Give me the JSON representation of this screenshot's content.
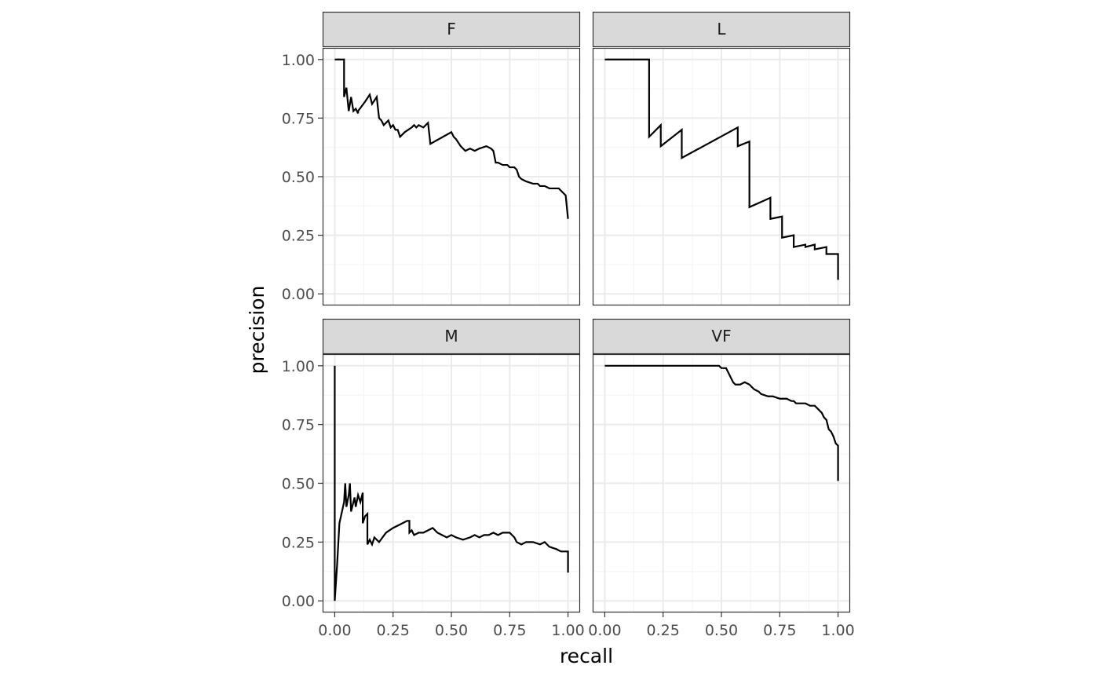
{
  "chart_data": {
    "type": "line",
    "facet_layout": "2x2 grid",
    "xlabel": "recall",
    "ylabel": "precision",
    "xlim": [
      0,
      1
    ],
    "ylim": [
      0,
      1
    ],
    "x_ticks": [
      "0.00",
      "0.25",
      "0.50",
      "0.75",
      "1.00"
    ],
    "y_ticks": [
      "0.00",
      "0.25",
      "0.50",
      "0.75",
      "1.00"
    ],
    "grid": true,
    "colors": {
      "line": "#000000",
      "strip_fill": "#d9d9d9",
      "grid_major": "#ebebeb",
      "grid_minor": "#f4f4f4",
      "border": "#333333"
    },
    "panels": [
      {
        "label": "F",
        "series": [
          {
            "x": [
              0.0,
              0.04,
              0.04,
              0.05,
              0.06,
              0.07,
              0.08,
              0.09,
              0.1,
              0.1,
              0.13,
              0.15,
              0.16,
              0.18,
              0.19,
              0.2,
              0.21,
              0.22,
              0.23,
              0.24,
              0.25,
              0.26,
              0.27,
              0.28,
              0.3,
              0.33,
              0.34,
              0.35,
              0.36,
              0.38,
              0.4,
              0.41,
              0.5,
              0.51,
              0.52,
              0.54,
              0.55,
              0.56,
              0.58,
              0.6,
              0.62,
              0.65,
              0.67,
              0.68,
              0.69,
              0.7,
              0.72,
              0.74,
              0.75,
              0.77,
              0.78,
              0.79,
              0.8,
              0.82,
              0.85,
              0.87,
              0.88,
              0.9,
              0.92,
              0.94,
              0.96,
              0.97,
              0.98,
              0.99,
              1.0
            ],
            "y": [
              1.0,
              1.0,
              0.84,
              0.88,
              0.78,
              0.84,
              0.78,
              0.79,
              0.77,
              0.78,
              0.82,
              0.85,
              0.81,
              0.84,
              0.75,
              0.74,
              0.72,
              0.73,
              0.74,
              0.71,
              0.72,
              0.7,
              0.7,
              0.67,
              0.69,
              0.71,
              0.72,
              0.71,
              0.72,
              0.71,
              0.73,
              0.64,
              0.69,
              0.67,
              0.66,
              0.63,
              0.62,
              0.61,
              0.62,
              0.61,
              0.62,
              0.63,
              0.62,
              0.61,
              0.56,
              0.56,
              0.55,
              0.55,
              0.54,
              0.54,
              0.53,
              0.5,
              0.49,
              0.48,
              0.47,
              0.47,
              0.46,
              0.46,
              0.45,
              0.45,
              0.45,
              0.44,
              0.43,
              0.42,
              0.32
            ]
          }
        ]
      },
      {
        "label": "L",
        "series": [
          {
            "x": [
              0.0,
              0.19,
              0.19,
              0.24,
              0.24,
              0.33,
              0.33,
              0.57,
              0.57,
              0.62,
              0.62,
              0.71,
              0.71,
              0.76,
              0.76,
              0.81,
              0.81,
              0.86,
              0.86,
              0.9,
              0.9,
              0.95,
              0.95,
              1.0,
              1.0
            ],
            "y": [
              1.0,
              1.0,
              0.67,
              0.72,
              0.63,
              0.7,
              0.58,
              0.71,
              0.63,
              0.65,
              0.37,
              0.41,
              0.32,
              0.33,
              0.24,
              0.25,
              0.2,
              0.21,
              0.2,
              0.21,
              0.19,
              0.2,
              0.17,
              0.17,
              0.06
            ]
          }
        ]
      },
      {
        "label": "M",
        "series": [
          {
            "x": [
              0.0,
              0.0,
              0.01,
              0.02,
              0.04,
              0.045,
              0.05,
              0.06,
              0.065,
              0.07,
              0.08,
              0.085,
              0.09,
              0.1,
              0.11,
              0.12,
              0.12,
              0.13,
              0.14,
              0.14,
              0.15,
              0.16,
              0.17,
              0.19,
              0.22,
              0.25,
              0.27,
              0.29,
              0.31,
              0.32,
              0.32,
              0.33,
              0.34,
              0.36,
              0.38,
              0.4,
              0.42,
              0.44,
              0.46,
              0.48,
              0.5,
              0.52,
              0.55,
              0.58,
              0.6,
              0.62,
              0.64,
              0.66,
              0.68,
              0.7,
              0.72,
              0.75,
              0.77,
              0.78,
              0.8,
              0.82,
              0.85,
              0.88,
              0.9,
              0.92,
              0.95,
              0.97,
              1.0,
              1.0
            ],
            "y": [
              1.0,
              0.0,
              0.15,
              0.33,
              0.42,
              0.5,
              0.4,
              0.45,
              0.5,
              0.38,
              0.42,
              0.44,
              0.4,
              0.45,
              0.42,
              0.46,
              0.33,
              0.36,
              0.37,
              0.24,
              0.26,
              0.24,
              0.27,
              0.25,
              0.29,
              0.31,
              0.32,
              0.33,
              0.34,
              0.34,
              0.29,
              0.3,
              0.28,
              0.29,
              0.29,
              0.3,
              0.31,
              0.29,
              0.28,
              0.27,
              0.28,
              0.27,
              0.26,
              0.27,
              0.28,
              0.27,
              0.28,
              0.28,
              0.29,
              0.28,
              0.29,
              0.29,
              0.27,
              0.25,
              0.24,
              0.25,
              0.25,
              0.24,
              0.25,
              0.23,
              0.22,
              0.21,
              0.21,
              0.12
            ]
          }
        ]
      },
      {
        "label": "VF",
        "series": [
          {
            "x": [
              0.0,
              0.49,
              0.5,
              0.52,
              0.53,
              0.54,
              0.55,
              0.56,
              0.58,
              0.6,
              0.62,
              0.64,
              0.66,
              0.67,
              0.7,
              0.72,
              0.75,
              0.78,
              0.8,
              0.81,
              0.82,
              0.84,
              0.86,
              0.88,
              0.9,
              0.91,
              0.92,
              0.93,
              0.94,
              0.95,
              0.955,
              0.96,
              0.97,
              0.98,
              0.99,
              1.0,
              1.0
            ],
            "y": [
              1.0,
              1.0,
              0.99,
              0.99,
              0.97,
              0.95,
              0.93,
              0.92,
              0.92,
              0.93,
              0.92,
              0.9,
              0.89,
              0.88,
              0.87,
              0.87,
              0.86,
              0.86,
              0.85,
              0.85,
              0.84,
              0.84,
              0.84,
              0.83,
              0.83,
              0.82,
              0.81,
              0.8,
              0.78,
              0.77,
              0.75,
              0.73,
              0.72,
              0.7,
              0.67,
              0.66,
              0.51
            ]
          }
        ]
      }
    ]
  }
}
